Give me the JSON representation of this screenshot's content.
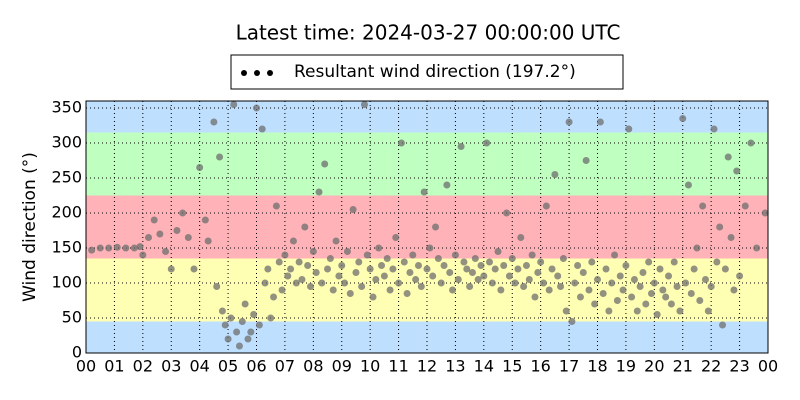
{
  "chart_data": {
    "type": "scatter",
    "title": "Latest time: 2024-03-27 00:00:00 UTC",
    "y_label": "Wind direction (°)",
    "xlim": [
      0,
      24
    ],
    "ylim": [
      0,
      360
    ],
    "xticks": [
      {
        "value": 0,
        "label": "00"
      },
      {
        "value": 1,
        "label": "01"
      },
      {
        "value": 2,
        "label": "02"
      },
      {
        "value": 3,
        "label": "03"
      },
      {
        "value": 4,
        "label": "04"
      },
      {
        "value": 5,
        "label": "05"
      },
      {
        "value": 6,
        "label": "06"
      },
      {
        "value": 7,
        "label": "07"
      },
      {
        "value": 8,
        "label": "08"
      },
      {
        "value": 9,
        "label": "09"
      },
      10,
      11,
      12,
      13,
      14,
      15,
      16,
      17,
      18,
      19,
      20,
      21,
      22,
      23,
      {
        "value": 24,
        "label": "00"
      }
    ],
    "yticks": [
      0,
      50,
      100,
      150,
      200,
      250,
      300,
      350
    ],
    "grid": true,
    "bands": [
      {
        "from": 0,
        "to": 45,
        "color": "#bfdfff"
      },
      {
        "from": 45,
        "to": 135,
        "color": "#ffffb3"
      },
      {
        "from": 135,
        "to": 225,
        "color": "#ffb3b8"
      },
      {
        "from": 225,
        "to": 315,
        "color": "#bfffbf"
      },
      {
        "from": 315,
        "to": 360,
        "color": "#bfdfff"
      }
    ],
    "legend": "top",
    "series": [
      {
        "name": "Resultant wind direction (197.2°)",
        "color": "#6e6e6e",
        "x": [
          0.2,
          0.5,
          0.8,
          1.1,
          1.4,
          1.7,
          1.9,
          2.0,
          2.2,
          2.4,
          2.6,
          2.8,
          3.0,
          3.2,
          3.4,
          3.6,
          3.8,
          4.0,
          4.2,
          4.3,
          4.5,
          4.6,
          4.7,
          4.8,
          4.9,
          5.0,
          5.1,
          5.2,
          5.3,
          5.4,
          5.5,
          5.6,
          5.7,
          5.8,
          5.9,
          6.0,
          6.1,
          6.2,
          6.3,
          6.4,
          6.5,
          6.6,
          6.7,
          6.8,
          6.9,
          7.0,
          7.1,
          7.2,
          7.3,
          7.4,
          7.5,
          7.6,
          7.7,
          7.8,
          7.9,
          8.0,
          8.1,
          8.2,
          8.3,
          8.4,
          8.5,
          8.6,
          8.7,
          8.8,
          8.9,
          9.0,
          9.1,
          9.2,
          9.3,
          9.4,
          9.5,
          9.6,
          9.7,
          9.8,
          9.9,
          10.0,
          10.1,
          10.2,
          10.3,
          10.4,
          10.5,
          10.6,
          10.7,
          10.8,
          10.9,
          11.0,
          11.1,
          11.2,
          11.3,
          11.4,
          11.5,
          11.6,
          11.7,
          11.8,
          11.9,
          12.0,
          12.1,
          12.2,
          12.3,
          12.4,
          12.5,
          12.6,
          12.7,
          12.8,
          12.9,
          13.0,
          13.1,
          13.2,
          13.3,
          13.4,
          13.5,
          13.6,
          13.7,
          13.8,
          13.9,
          14.0,
          14.1,
          14.2,
          14.3,
          14.4,
          14.5,
          14.6,
          14.7,
          14.8,
          14.9,
          15.0,
          15.1,
          15.2,
          15.3,
          15.4,
          15.5,
          15.6,
          15.7,
          15.8,
          15.9,
          16.0,
          16.1,
          16.2,
          16.3,
          16.4,
          16.5,
          16.6,
          16.7,
          16.8,
          16.9,
          17.0,
          17.1,
          17.2,
          17.3,
          17.4,
          17.5,
          17.6,
          17.7,
          17.8,
          17.9,
          18.0,
          18.1,
          18.2,
          18.3,
          18.4,
          18.5,
          18.6,
          18.7,
          18.8,
          18.9,
          19.0,
          19.1,
          19.2,
          19.3,
          19.4,
          19.5,
          19.6,
          19.7,
          19.8,
          19.9,
          20.0,
          20.1,
          20.2,
          20.3,
          20.4,
          20.5,
          20.6,
          20.7,
          20.8,
          20.9,
          21.0,
          21.1,
          21.2,
          21.3,
          21.4,
          21.5,
          21.6,
          21.7,
          21.8,
          21.9,
          22.0,
          22.1,
          22.2,
          22.3,
          22.4,
          22.5,
          22.6,
          22.7,
          22.8,
          22.9,
          23.0,
          23.2,
          23.4,
          23.6,
          23.9
        ],
        "values": [
          147,
          150,
          150,
          151,
          150,
          150,
          152,
          140,
          165,
          190,
          170,
          145,
          120,
          175,
          200,
          165,
          120,
          265,
          190,
          160,
          330,
          95,
          280,
          60,
          40,
          20,
          50,
          355,
          30,
          10,
          45,
          70,
          20,
          30,
          55,
          350,
          40,
          320,
          100,
          120,
          50,
          80,
          210,
          130,
          90,
          140,
          110,
          120,
          160,
          100,
          130,
          105,
          180,
          125,
          95,
          145,
          115,
          230,
          100,
          270,
          120,
          135,
          90,
          160,
          110,
          125,
          100,
          145,
          85,
          205,
          115,
          130,
          95,
          355,
          140,
          120,
          80,
          105,
          150,
          125,
          110,
          135,
          90,
          120,
          165,
          100,
          300,
          130,
          85,
          115,
          140,
          105,
          125,
          95,
          230,
          120,
          150,
          110,
          180,
          135,
          100,
          125,
          240,
          115,
          90,
          140,
          105,
          295,
          130,
          120,
          95,
          115,
          135,
          105,
          125,
          110,
          300,
          130,
          100,
          120,
          145,
          90,
          125,
          200,
          110,
          135,
          100,
          120,
          165,
          95,
          125,
          105,
          140,
          80,
          115,
          130,
          100,
          210,
          90,
          120,
          255,
          110,
          95,
          135,
          60,
          330,
          45,
          100,
          125,
          80,
          115,
          275,
          90,
          130,
          70,
          105,
          330,
          85,
          120,
          60,
          100,
          140,
          75,
          110,
          90,
          125,
          320,
          80,
          105,
          60,
          95,
          115,
          70,
          130,
          85,
          100,
          55,
          120,
          90,
          80,
          110,
          70,
          130,
          95,
          60,
          335,
          100,
          240,
          85,
          120,
          150,
          75,
          210,
          105,
          60,
          95,
          320,
          130,
          180,
          40,
          120,
          280,
          165,
          90,
          260,
          110,
          210,
          300,
          150,
          200
        ]
      }
    ]
  }
}
